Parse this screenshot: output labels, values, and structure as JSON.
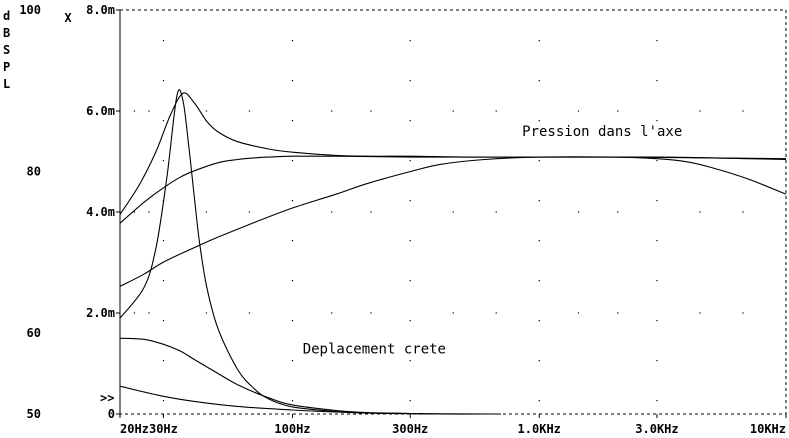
{
  "chart_data": {
    "type": "line",
    "x_scale": "log",
    "xlim": [
      20,
      10000
    ],
    "x_ticks": [
      {
        "value": 20,
        "label": "20Hz"
      },
      {
        "value": 30,
        "label": "30Hz"
      },
      {
        "value": 100,
        "label": "100Hz"
      },
      {
        "value": 300,
        "label": "300Hz"
      },
      {
        "value": 1000,
        "label": "1.0KHz"
      },
      {
        "value": 3000,
        "label": "3.0KHz"
      },
      {
        "value": 10000,
        "label": "10KHz"
      }
    ],
    "y_left": {
      "label_chars": [
        "d",
        "B",
        "S",
        "P",
        "L"
      ],
      "ylim": [
        50,
        100
      ],
      "ticks": [
        {
          "value": 50,
          "label": "50"
        },
        {
          "value": 60,
          "label": "60"
        },
        {
          "value": 80,
          "label": "80"
        },
        {
          "value": 100,
          "label": "100"
        }
      ]
    },
    "y_right": {
      "label": "X",
      "ylim": [
        0,
        0.008
      ],
      "ticks": [
        {
          "value": 0,
          "label": "0"
        },
        {
          "value": 0.002,
          "label": "2.0m"
        },
        {
          "value": 0.004,
          "label": "4.0m"
        },
        {
          "value": 0.006,
          "label": "6.0m"
        },
        {
          "value": 0.008,
          "label": "8.0m"
        }
      ]
    },
    "grid": "dotted",
    "annotations": [
      {
        "text": "Pression dans l'axe",
        "x": 1800,
        "y": 84.4
      },
      {
        "text": "Deplacement crete",
        "x": 110,
        "y": 57.5
      }
    ],
    "marker_text": ">>",
    "series": [
      {
        "axis": "left",
        "x": [
          20,
          24,
          28,
          32,
          36,
          40,
          45,
          50,
          60,
          80,
          100,
          150,
          200,
          300,
          500,
          1000,
          2000,
          5000,
          10000
        ],
        "y": [
          74.7,
          78.4,
          82.5,
          87.0,
          89.7,
          88.5,
          86.2,
          84.9,
          83.7,
          82.8,
          82.4,
          82.0,
          81.9,
          81.9,
          81.8,
          81.8,
          81.8,
          81.7,
          81.6
        ]
      },
      {
        "axis": "left",
        "x": [
          20,
          25,
          30,
          35,
          40,
          50,
          60,
          70,
          80,
          100,
          150,
          300,
          1000,
          3000,
          5000,
          7000,
          10000
        ],
        "y": [
          73.6,
          76.2,
          78.0,
          79.3,
          80.1,
          81.1,
          81.5,
          81.7,
          81.8,
          81.9,
          81.9,
          81.8,
          81.8,
          81.8,
          81.7,
          81.6,
          81.5
        ]
      },
      {
        "axis": "left",
        "x": [
          20,
          25,
          30,
          40,
          50,
          70,
          100,
          150,
          200,
          300,
          400,
          600,
          1000,
          2000,
          3000,
          4000,
          5000,
          7000,
          10000
        ],
        "y": [
          65.8,
          67.3,
          68.8,
          70.6,
          71.9,
          73.7,
          75.5,
          77.2,
          78.5,
          80.0,
          80.9,
          81.5,
          81.8,
          81.8,
          81.6,
          81.2,
          80.5,
          79.1,
          77.2
        ]
      },
      {
        "axis": "right",
        "x": [
          20,
          25,
          28,
          31,
          34,
          36,
          38,
          40,
          42,
          45,
          50,
          60,
          70,
          80,
          100,
          150,
          200,
          300,
          400
        ],
        "y": [
          0.0019,
          0.0025,
          0.0033,
          0.0047,
          0.0063,
          0.0062,
          0.0053,
          0.0043,
          0.0034,
          0.0025,
          0.00168,
          0.00088,
          0.0005,
          0.0003,
          0.00014,
          5e-05,
          2e-05,
          5e-06,
          0.0
        ]
      },
      {
        "axis": "right",
        "x": [
          20,
          25,
          30,
          35,
          40,
          50,
          60,
          80,
          100,
          150,
          200,
          300,
          400,
          600
        ],
        "y": [
          0.0015,
          0.00148,
          0.00138,
          0.00125,
          0.00108,
          0.0008,
          0.00058,
          0.00032,
          0.00018,
          7e-05,
          3e-05,
          1e-05,
          0.0,
          0.0
        ]
      },
      {
        "axis": "right",
        "x": [
          20,
          30,
          40,
          60,
          100,
          150,
          200,
          300,
          400,
          700
        ],
        "y": [
          0.00055,
          0.00035,
          0.00025,
          0.00015,
          8e-05,
          4e-05,
          2e-05,
          1e-05,
          3e-06,
          0.0
        ]
      }
    ]
  }
}
